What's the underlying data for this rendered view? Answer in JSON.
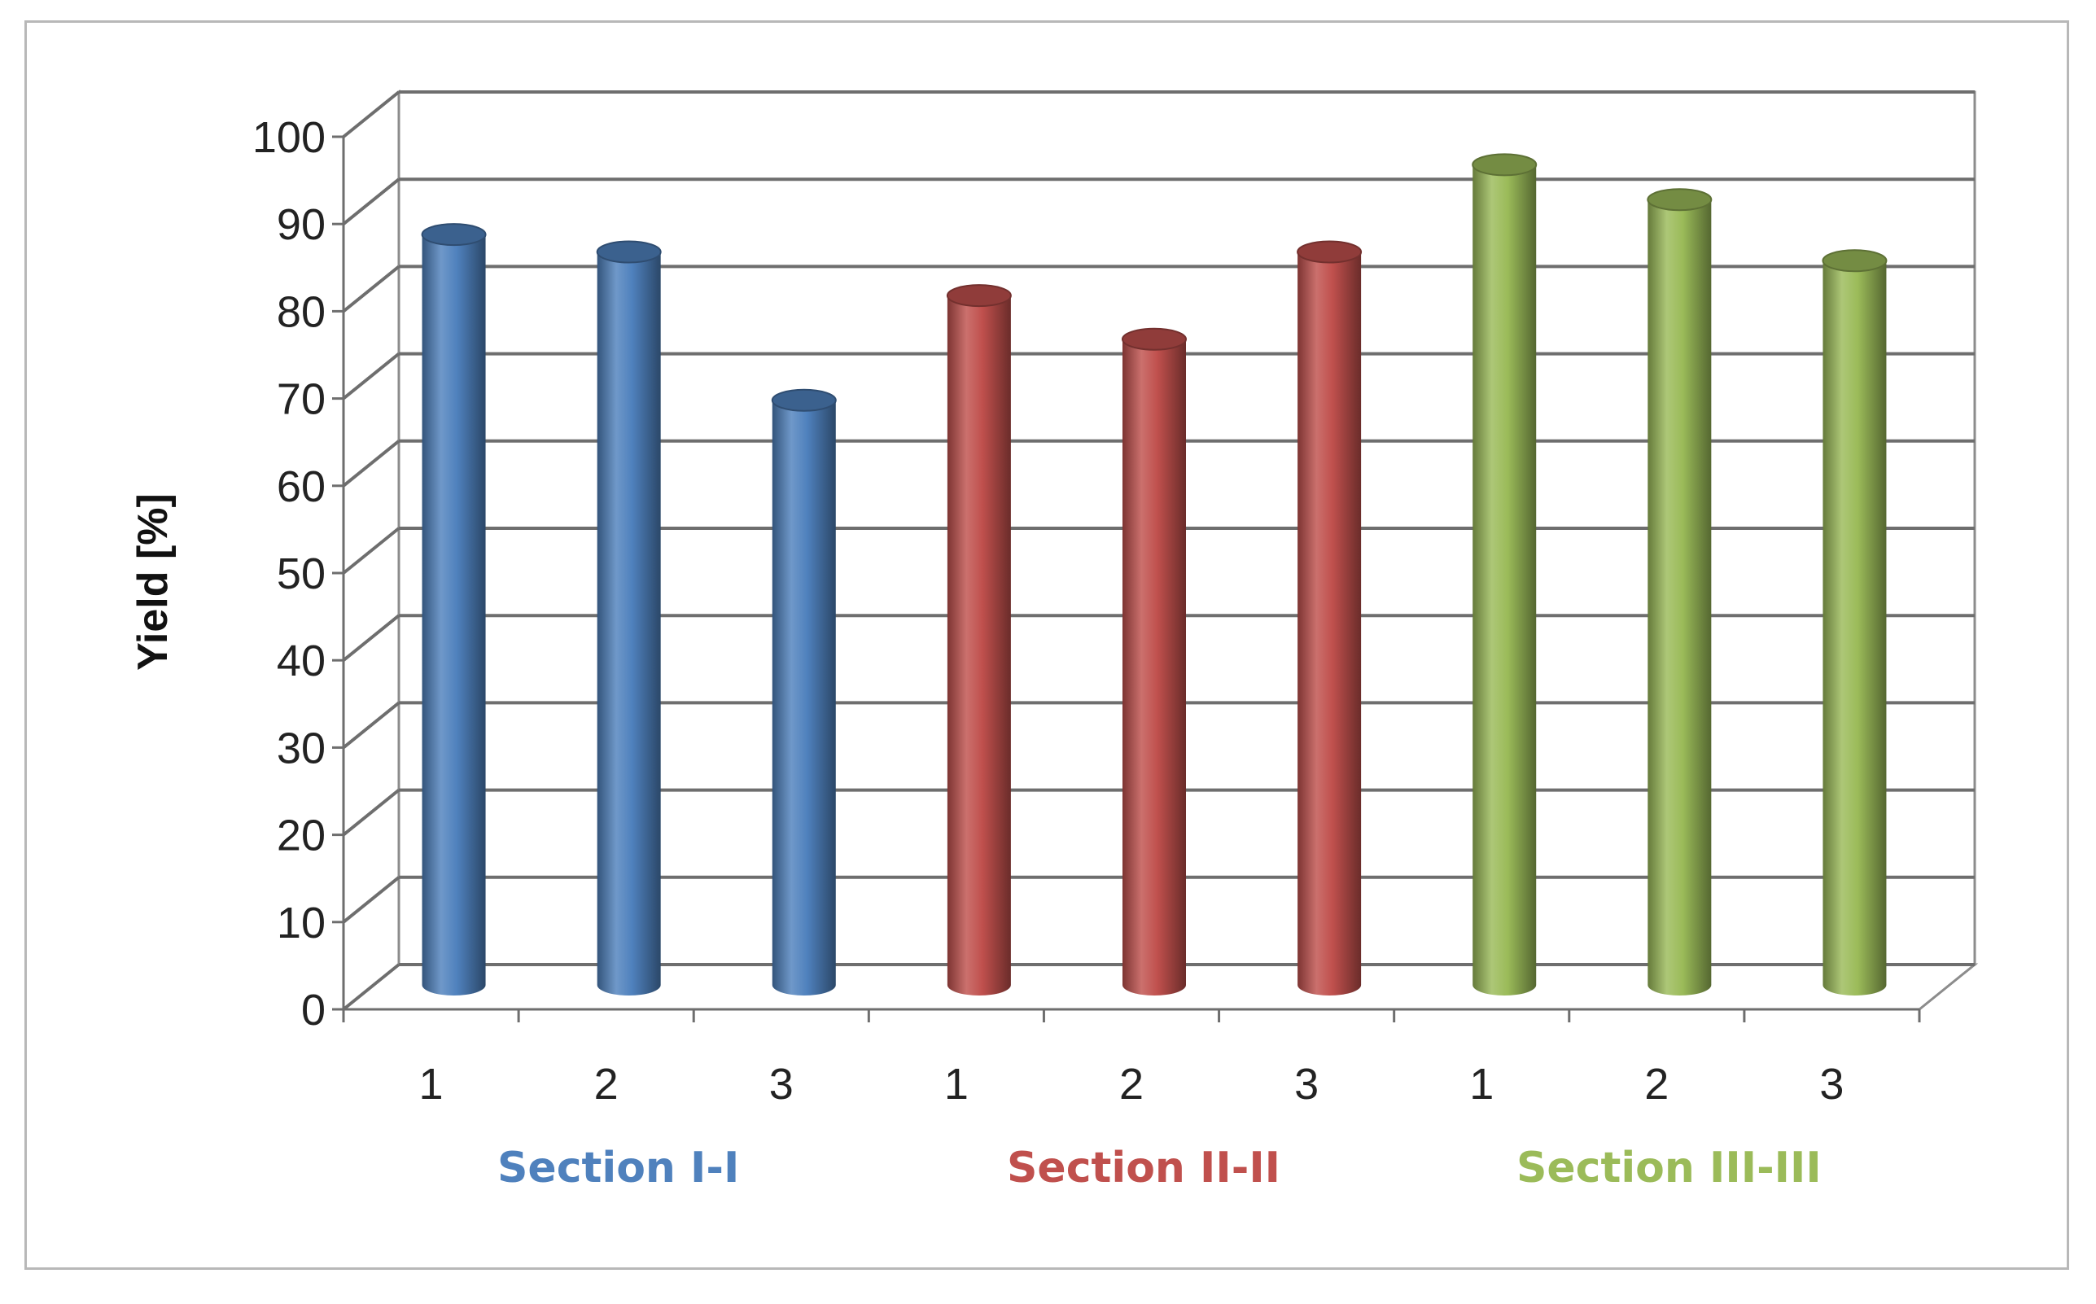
{
  "chart_data": {
    "type": "bar",
    "style": "3d-cylinder",
    "ylabel": "Yield [%]",
    "ylim": [
      0,
      100
    ],
    "yticks": [
      0,
      10,
      20,
      30,
      40,
      50,
      60,
      70,
      80,
      90,
      100
    ],
    "grid": true,
    "categories": [
      "1",
      "2",
      "3",
      "1",
      "2",
      "3",
      "1",
      "2",
      "3"
    ],
    "groups": [
      {
        "label": "Section I-I",
        "color": "#4f81bd",
        "categories": [
          "1",
          "2",
          "3"
        ],
        "values": [
          86,
          84,
          67
        ]
      },
      {
        "label": "Section II-II",
        "color": "#c0504d",
        "categories": [
          "1",
          "2",
          "3"
        ],
        "values": [
          79,
          74,
          84
        ]
      },
      {
        "label": "Section III-III",
        "color": "#9bbb59",
        "categories": [
          "1",
          "2",
          "3"
        ],
        "values": [
          94,
          90,
          83
        ]
      }
    ]
  }
}
